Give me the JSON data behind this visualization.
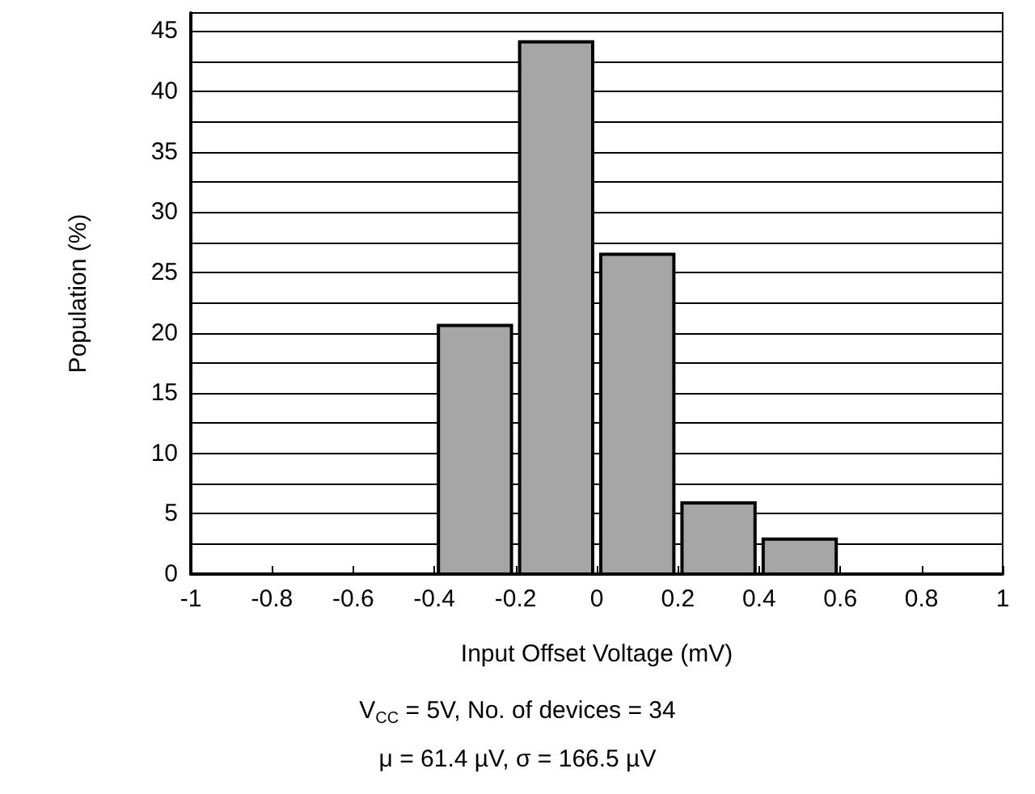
{
  "chart_data": {
    "type": "histogram",
    "xlabel": "Input Offset Voltage (mV)",
    "ylabel": "Population (%)",
    "bins": [
      -1,
      -0.8,
      -0.6,
      -0.4,
      -0.2,
      0,
      0.2,
      0.4,
      0.6,
      0.8,
      1
    ],
    "values": [
      0,
      0,
      0,
      20.6,
      44.1,
      26.5,
      5.9,
      2.9,
      0,
      0
    ],
    "color": "#a6a6a6",
    "xlim": [
      -1,
      1
    ],
    "xticks": [
      -1,
      -0.8,
      -0.6,
      -0.4,
      -0.2,
      0,
      0.2,
      0.4,
      0.6,
      0.8,
      1
    ],
    "ylim": [
      0,
      46.5
    ],
    "yticks": [
      0,
      {
        "value": 2.5,
        "label": null
      },
      5,
      {
        "value": 7.5,
        "label": null
      },
      10,
      {
        "value": 12.5,
        "label": null
      },
      15,
      {
        "value": 17.5,
        "label": null
      },
      20,
      {
        "value": 22.5,
        "label": null
      },
      25,
      {
        "value": 27.5,
        "label": null
      },
      30,
      {
        "value": 32.5,
        "label": null
      },
      35,
      {
        "value": 37.5,
        "label": null
      },
      40,
      {
        "value": 42.5,
        "label": null
      },
      45
    ],
    "grid": "y",
    "annotations": [
      "V$_{CC}$ = 5V, No. of devices = 34",
      "μ = 61.4 µV, σ = 166.5 µV"
    ]
  }
}
